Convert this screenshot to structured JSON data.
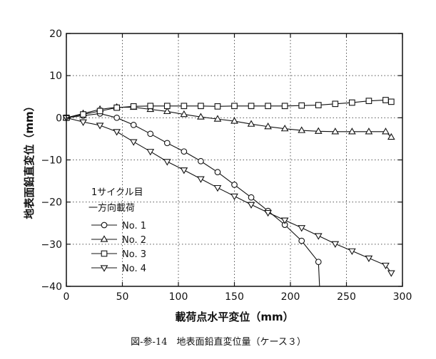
{
  "chart_data": {
    "type": "line",
    "title": "",
    "xlabel": "載荷点水平変位（mm）",
    "ylabel": "地表面鉛直変位（mm）",
    "xlim": [
      0,
      300
    ],
    "ylim": [
      -40,
      20
    ],
    "xticks": [
      0,
      50,
      100,
      150,
      200,
      250,
      300
    ],
    "yticks": [
      -40,
      -30,
      -20,
      -10,
      0,
      10,
      20
    ],
    "grid": true,
    "legend_title_lines": [
      "1サイクル目",
      "一方向載荷"
    ],
    "legend_position": "lower-left",
    "colors": {
      "line": "#111111",
      "grid": "#555555",
      "background": "#ffffff"
    },
    "series": [
      {
        "name": "No. 1",
        "marker": "circle",
        "x": [
          0,
          15,
          30,
          45,
          60,
          75,
          90,
          105,
          120,
          135,
          150,
          165,
          180,
          195,
          210,
          225,
          226
        ],
        "y": [
          0,
          0.5,
          1,
          0,
          -1.7,
          -3.8,
          -6,
          -8,
          -10.3,
          -12.9,
          -15.9,
          -18.9,
          -22.1,
          -25.4,
          -29.2,
          -34.2,
          -40
        ]
      },
      {
        "name": "No. 2",
        "marker": "triangle-up",
        "x": [
          0,
          15,
          30,
          45,
          60,
          75,
          90,
          105,
          120,
          135,
          150,
          165,
          180,
          195,
          210,
          225,
          240,
          255,
          270,
          285,
          290
        ],
        "y": [
          0,
          1,
          2,
          2.5,
          2.5,
          2,
          1.5,
          0.8,
          0.2,
          -0.3,
          -0.8,
          -1.5,
          -2.1,
          -2.6,
          -3,
          -3.2,
          -3.3,
          -3.3,
          -3.3,
          -3.3,
          -4.6
        ]
      },
      {
        "name": "No. 3",
        "marker": "square",
        "x": [
          0,
          15,
          30,
          45,
          60,
          75,
          90,
          105,
          120,
          135,
          150,
          165,
          180,
          195,
          210,
          225,
          240,
          255,
          270,
          285,
          290
        ],
        "y": [
          0,
          0.8,
          1.6,
          2.4,
          2.7,
          2.8,
          2.8,
          2.8,
          2.8,
          2.7,
          2.8,
          2.8,
          2.8,
          2.8,
          2.9,
          3,
          3.3,
          3.6,
          4,
          4.2,
          3.8
        ]
      },
      {
        "name": "No. 4",
        "marker": "triangle-down",
        "x": [
          0,
          15,
          30,
          45,
          60,
          75,
          90,
          105,
          120,
          135,
          150,
          165,
          180,
          195,
          210,
          225,
          240,
          255,
          270,
          285,
          290
        ],
        "y": [
          0,
          -1,
          -1.8,
          -3.3,
          -5.7,
          -8,
          -10.4,
          -12.4,
          -14.5,
          -16.6,
          -18.6,
          -20.6,
          -22.5,
          -24.3,
          -26.1,
          -28,
          -29.9,
          -31.6,
          -33.3,
          -35,
          -36.8
        ]
      }
    ]
  },
  "caption": "図-参-14　地表面鉛直変位量（ケース３）"
}
